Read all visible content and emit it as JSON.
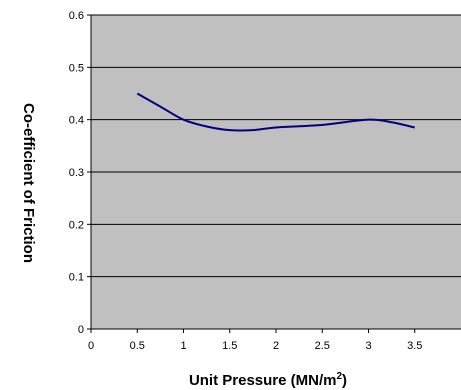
{
  "chart_data": {
    "type": "line",
    "title": "",
    "xlabel": "Unit Pressure (MN/m",
    "xlabel_superscript": "2",
    "xlabel_suffix": ")",
    "ylabel": "Co-efficient of Friction",
    "xlim": [
      0,
      4
    ],
    "ylim": [
      0,
      0.6
    ],
    "x_ticks": [
      "0",
      "0.5",
      "1",
      "1.5",
      "2",
      "2.5",
      "3",
      "3.5"
    ],
    "y_ticks": [
      "0",
      "0.1",
      "0.2",
      "0.3",
      "0.4",
      "0.5",
      "0.6"
    ],
    "grid": "horizontal",
    "plot_background": "#c0c0c0",
    "gridline_color": "#000000",
    "series": [
      {
        "color": "#000080",
        "x": [
          0.5,
          0.75,
          1.0,
          1.25,
          1.5,
          1.75,
          2.0,
          2.5,
          3.0,
          3.25,
          3.5
        ],
        "y": [
          0.45,
          0.425,
          0.4,
          0.387,
          0.38,
          0.38,
          0.385,
          0.39,
          0.4,
          0.395,
          0.385
        ]
      }
    ]
  }
}
